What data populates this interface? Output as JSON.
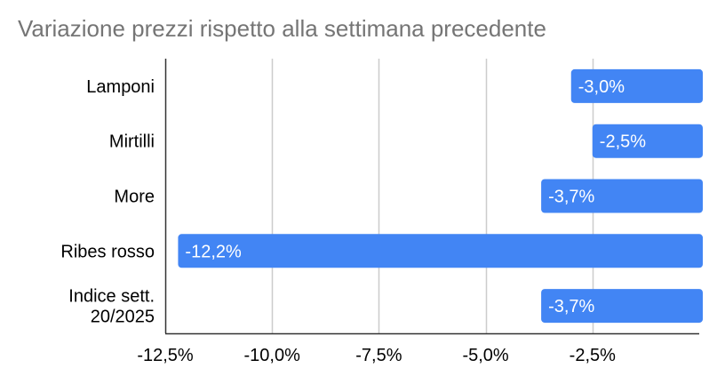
{
  "chart_data": {
    "type": "bar",
    "orientation": "horizontal",
    "title": "Variazione prezzi rispetto alla settimana precedente",
    "xlabel": "",
    "ylabel": "",
    "categories": [
      "Lamponi",
      "Mirtilli",
      "More",
      "Ribes rosso",
      "Indice sett. 20/2025"
    ],
    "category_lines": [
      [
        "Lamponi"
      ],
      [
        "Mirtilli"
      ],
      [
        "More"
      ],
      [
        "Ribes rosso"
      ],
      [
        "Indice sett.",
        "20/2025"
      ]
    ],
    "values": [
      -3.0,
      -2.5,
      -3.7,
      -12.2,
      -3.7
    ],
    "data_labels": [
      "-3,0%",
      "-2,5%",
      "-3,7%",
      "-12,2%",
      "-3,7%"
    ],
    "xlim": [
      -12.5,
      0
    ],
    "xticks": [
      -12.5,
      -10.0,
      -7.5,
      -5.0,
      -2.5
    ],
    "xtick_labels": [
      "-12,5%",
      "-10,0%",
      "-7,5%",
      "-5,0%",
      "-2,5%"
    ],
    "grid": true,
    "legend": "none",
    "bar_color": "#4285F4",
    "grid_color": "#CCCCCC",
    "axis_color": "#333333",
    "title_color": "#757575",
    "label_color": "#000000",
    "data_label_color": "#FFFFFF"
  }
}
